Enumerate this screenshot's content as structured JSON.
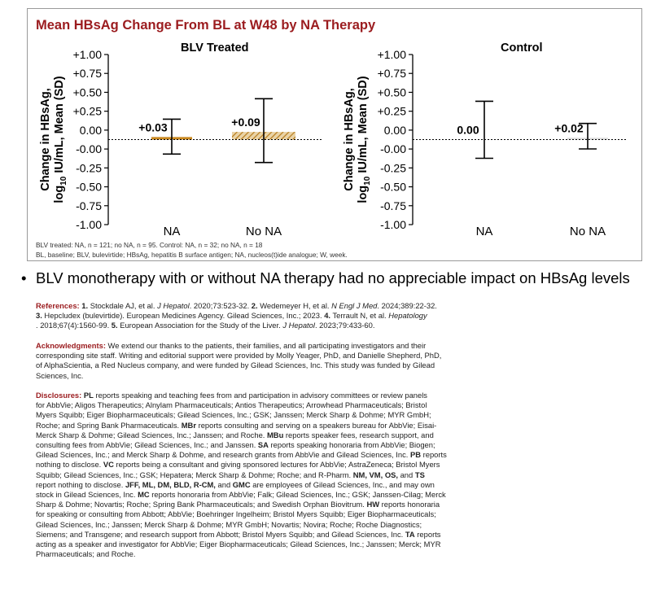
{
  "figure": {
    "title": "Mean HBsAg Change From BL at W48 by NA Therapy",
    "panels": [
      {
        "title": "BLV Treated"
      },
      {
        "title": "Control"
      }
    ],
    "n_note": "BLV treated: NA, n = 121; no NA, n = 95. Control: NA, n = 32; no NA, n = 18",
    "abbreviations": "BL, baseline; BLV, bulevirtide; HBsAg, hepatitis B surface antigen; NA, nucleos(t)ide analogue; W, week."
  },
  "chart_data": [
    {
      "type": "bar",
      "title": "BLV Treated",
      "categories": [
        "NA",
        "No NA"
      ],
      "values": [
        0.03,
        0.09
      ],
      "value_labels": [
        "+0.03",
        "+0.09"
      ],
      "error_low": [
        -0.17,
        -0.27
      ],
      "error_high": [
        0.24,
        0.48
      ],
      "bar_styles": [
        "solid",
        "hatched"
      ],
      "bar_color": "#c8871e",
      "ylabel_line1": "Change in HBsAg,",
      "ylabel_line2": "log",
      "ylabel_sub": "10",
      "ylabel_line2b": " IU/mL, Mean (SD)",
      "ylim": [
        -1.0,
        1.0
      ],
      "yticks": [
        "+1.00",
        "+0.75",
        "+0.50",
        "+0.25",
        "0.00",
        "-0.00",
        "-0.25",
        "-0.50",
        "-0.75",
        "-1.00"
      ],
      "reference_line": 0
    },
    {
      "type": "bar",
      "title": "Control",
      "categories": [
        "NA",
        "No NA"
      ],
      "values": [
        0.0,
        0.02
      ],
      "value_labels": [
        "0.00",
        "+0.02"
      ],
      "error_low": [
        -0.22,
        -0.11
      ],
      "error_high": [
        0.45,
        0.19
      ],
      "bar_styles": [
        "none",
        "light"
      ],
      "bar_color": "#d9d9d9",
      "ylabel_line1": "Change in HBsAg,",
      "ylabel_line2": "log",
      "ylabel_sub": "10",
      "ylabel_line2b": " IU/mL, Mean (SD)",
      "ylim": [
        -1.0,
        1.0
      ],
      "yticks": [
        "+1.00",
        "+0.75",
        "+0.50",
        "+0.25",
        "0.00",
        "-0.00",
        "-0.25",
        "-0.50",
        "-0.75",
        "-1.00"
      ],
      "reference_line": 0
    }
  ],
  "bullet": "BLV monotherapy with or without NA therapy had no appreciable impact on HBsAg levels",
  "references": {
    "head": "References:",
    "r1_num": "1.",
    "r1": " Stockdale AJ, et al. ",
    "r1_journal": "J Hepatol",
    "r1_tail": ". 2020;73:523-32. ",
    "r2_num": "2.",
    "r2": " Wedemeyer H, et al. ",
    "r2_journal": "N Engl J Med",
    "r2_tail": ". 2024;389:22-32.",
    "r3_num": "3.",
    "r3": " Hepcludex (bulevirtide). European Medicines Agency. Gilead Sciences, Inc.; 2023. ",
    "r4_num": "4.",
    "r4": " Terrault N, et al. ",
    "r4_journal": "Hepatology",
    "r4_tail": ". 2018;67(4):1560-99. ",
    "r5_num": "5.",
    "r5": " European Association for the Study of the Liver. ",
    "r5_journal": "J Hepatol",
    "r5_tail": ". 2023;79:433-60."
  },
  "acknowledgments": {
    "head": "Acknowledgments:",
    "line1": " We extend our thanks to the patients, their families, and all participating investigators and their",
    "line2": "corresponding site staff. Writing and editorial support were provided by Molly Yeager, PhD, and Danielle Shepherd, PhD,",
    "line3": "of AlphaScientia, a Red Nucleus company, and were funded by Gilead Sciences, Inc. This study was funded by Gilead",
    "line4": "Sciences, Inc."
  },
  "disclosures": {
    "head": "Disclosures:",
    "pl": "PL",
    "l1": " reports speaking and teaching fees from and participation in advisory committees or review panels",
    "l2": "for AbbVie; Aligos Therapeutics; Alnylam Pharmaceuticals; Antios Therapeutics; Arrowhead Pharmaceuticals; Bristol",
    "l3": "Myers Squibb; Eiger Biopharmaceuticals; Gilead Sciences, Inc.; GSK; Janssen; Merck Sharp & Dohme; MYR GmbH;",
    "l4a": "Roche; and Spring Bank Pharmaceuticals. ",
    "mbr": "MBr",
    "l4b": " reports consulting and serving on a speakers bureau for AbbVie; Eisai-",
    "l5a": "Merck Sharp & Dohme; Gilead Sciences, Inc.; Janssen; and Roche. ",
    "mbu": "MBu",
    "l5b": " reports speaker fees, research support, and",
    "l6a": "consulting fees from AbbVie; Gilead Sciences, Inc.; and Janssen. ",
    "sa": "SA",
    "l6b": " reports speaking honoraria from AbbVie; Biogen;",
    "l7a": "Gilead Sciences, Inc.; and Merck Sharp & Dohme, and research grants from AbbVie and Gilead Sciences, Inc. ",
    "pb": "PB",
    "l7b": " reports",
    "l8a": "nothing to disclose. ",
    "vc": "VC",
    "l8b": " reports being a consultant and giving sponsored lectures for AbbVie; AstraZeneca; Bristol Myers",
    "l9a": "Squibb; Gilead Sciences, Inc.; GSK; Hepatera; Merck Sharp & Dohme; Roche; and R-Pharm. ",
    "nm_vm_os": "NM, VM, OS,",
    "l9b": " and ",
    "ts": "TS",
    "l10a": "report nothing to disclose. ",
    "jff_group": "JFF, ML, DM, BLD, R-CM,",
    "l10b": " and ",
    "gmc": "GMC",
    "l10c": " are employees of Gilead Sciences, Inc., and may own",
    "l11a": "stock in Gilead Sciences, Inc. ",
    "mc": "MC",
    "l11b": " reports honoraria from AbbVie; Falk; Gilead Sciences, Inc.; GSK; Janssen-Cilag; Merck",
    "l12a": "Sharp & Dohme; Novartis; Roche; Spring Bank Pharmaceuticals; and Swedish Orphan Biovitrum. ",
    "hw": "HW",
    "l12b": " reports honoraria",
    "l13": "for speaking or consulting from Abbott; AbbVie; Boehringer Ingelheim; Bristol Myers Squibb; Eiger Biopharmaceuticals;",
    "l14": "Gilead Sciences, Inc.; Janssen; Merck Sharp & Dohme; MYR GmbH; Novartis; Novira; Roche; Roche Diagnostics;",
    "l15a": "Siemens; and Transgene; and research support from Abbott; Bristol Myers Squibb; and Gilead Sciences, Inc. ",
    "ta": "TA",
    "l15b": " reports",
    "l16": "acting as a speaker and investigator for AbbVie; Eiger Biopharmaceuticals; Gilead Sciences, Inc.; Janssen; Merck; MYR",
    "l17": "Pharmaceuticals; and Roche."
  }
}
